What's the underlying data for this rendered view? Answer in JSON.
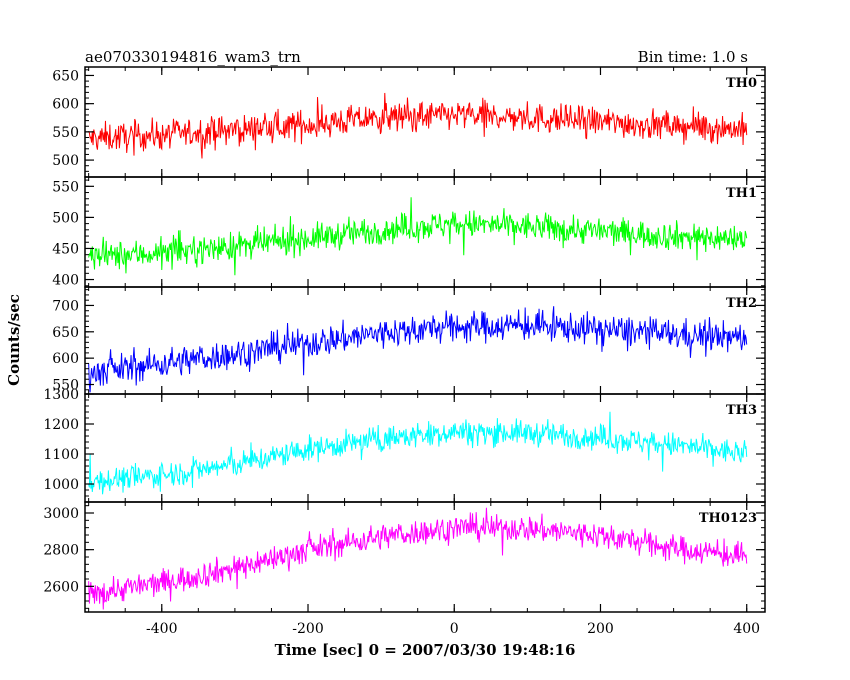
{
  "chart_data": {
    "type": "line",
    "title_left": "ae070330194816_wam3_trn",
    "title_right": "Bin time: 1.0 s",
    "xlabel": "Time [sec] 0 = 2007/03/30 19:48:16",
    "ylabel": "Counts/sec",
    "xlim": [
      -505,
      425
    ],
    "x_ticks": [
      -400,
      -200,
      0,
      200,
      400
    ],
    "bin_time_s": 1.0,
    "x_start": -500,
    "x_end": 400,
    "series": [
      {
        "name": "TH0",
        "color": "#ff0000",
        "ylim": [
          470,
          665
        ],
        "y_ticks": [
          500,
          550,
          600,
          650
        ],
        "trend": {
          "x": [
            -500,
            -400,
            -300,
            -200,
            -100,
            0,
            100,
            200,
            300,
            400
          ],
          "y": [
            538,
            545,
            553,
            563,
            575,
            580,
            575,
            568,
            560,
            555
          ]
        },
        "spread": 22
      },
      {
        "name": "TH1",
        "color": "#00ff00",
        "ylim": [
          388,
          565
        ],
        "y_ticks": [
          400,
          450,
          500,
          550
        ],
        "trend": {
          "x": [
            -500,
            -400,
            -300,
            -200,
            -100,
            0,
            100,
            200,
            300,
            400
          ],
          "y": [
            436,
            443,
            453,
            466,
            480,
            490,
            485,
            478,
            470,
            465
          ]
        },
        "spread": 19
      },
      {
        "name": "TH2",
        "color": "#0000ff",
        "ylim": [
          532,
          735
        ],
        "y_ticks": [
          550,
          600,
          650,
          700
        ],
        "trend": {
          "x": [
            -500,
            -400,
            -300,
            -200,
            -100,
            0,
            100,
            200,
            300,
            400
          ],
          "y": [
            572,
            590,
            608,
            628,
            648,
            660,
            662,
            655,
            645,
            638
          ]
        },
        "spread": 24
      },
      {
        "name": "TH3",
        "color": "#00ffff",
        "ylim": [
          940,
          1300
        ],
        "y_ticks": [
          1000,
          1100,
          1200,
          1300
        ],
        "trend": {
          "x": [
            -500,
            -400,
            -300,
            -200,
            -100,
            0,
            100,
            200,
            300,
            400
          ],
          "y": [
            1008,
            1030,
            1065,
            1115,
            1150,
            1175,
            1170,
            1155,
            1130,
            1100
          ]
        },
        "spread": 35
      },
      {
        "name": "TH0123",
        "color": "#ff00ff",
        "ylim": [
          2460,
          3060
        ],
        "y_ticks": [
          2600,
          2800,
          3000
        ],
        "trend": {
          "x": [
            -500,
            -400,
            -300,
            -200,
            -100,
            0,
            100,
            200,
            300,
            400
          ],
          "y": [
            2560,
            2620,
            2700,
            2800,
            2870,
            2920,
            2915,
            2880,
            2810,
            2760
          ]
        },
        "spread": 60
      }
    ]
  }
}
